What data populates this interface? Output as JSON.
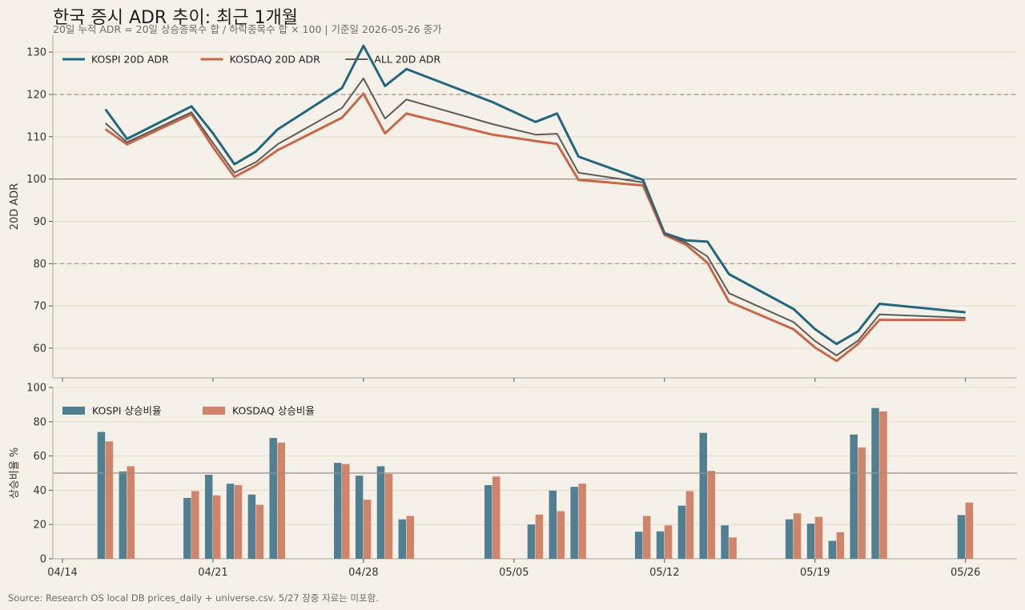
{
  "title": "한국 증시 ADR 추이: 최근 1개월",
  "subtitle": "20일 누적 ADR = 20일 상승종목수 합 / 하락종목수 합 × 100 | 기준일 2026-05-26 종가",
  "source": "Source: Research OS local DB prices_daily + universe.csv. 5/27 장중 자료는 미포함.",
  "colors": {
    "background": "#f6f1e8",
    "kospi": "#22667f",
    "kosdaq": "#c8684a",
    "all": "#5e5a57",
    "kospi_bar": "#4f7f90",
    "kosdaq_bar": "#d0846a"
  },
  "chart_data": [
    {
      "type": "line",
      "ylabel": "20D ADR",
      "ylim": [
        53,
        134
      ],
      "yticks": [
        60,
        70,
        80,
        90,
        100,
        110,
        120,
        130
      ],
      "xticks": [
        "04/14",
        "04/21",
        "04/28",
        "05/05",
        "05/12",
        "05/19",
        "05/26"
      ],
      "reference_lines": [
        120,
        100,
        80
      ],
      "legend_position": "top-left",
      "grid": true,
      "x": [
        "2026-04-16",
        "2026-04-17",
        "2026-04-20",
        "2026-04-21",
        "2026-04-22",
        "2026-04-23",
        "2026-04-24",
        "2026-04-27",
        "2026-04-28",
        "2026-04-29",
        "2026-04-30",
        "2026-05-04",
        "2026-05-06",
        "2026-05-07",
        "2026-05-08",
        "2026-05-11",
        "2026-05-12",
        "2026-05-13",
        "2026-05-14",
        "2026-05-15",
        "2026-05-18",
        "2026-05-19",
        "2026-05-20",
        "2026-05-21",
        "2026-05-22",
        "2026-05-26"
      ],
      "series": [
        {
          "name": "KOSPI 20D ADR",
          "color_key": "kospi",
          "values": [
            116.5,
            109.5,
            117.2,
            110.8,
            103.5,
            106.5,
            111.7,
            121.5,
            131.5,
            122,
            126,
            118.2,
            113.5,
            115.5,
            105.3,
            99.8,
            87.2,
            85.5,
            85.2,
            77.5,
            69.3,
            64.5,
            61,
            64,
            70.5,
            68.5
          ]
        },
        {
          "name": "KOSDAQ 20D ADR",
          "color_key": "kosdaq",
          "values": [
            111.8,
            108.2,
            115.3,
            107.5,
            100.5,
            103.2,
            106.8,
            114.5,
            120.2,
            110.8,
            115.5,
            110.5,
            109,
            108.3,
            99.8,
            98.5,
            86.8,
            84.5,
            80.2,
            71,
            64.5,
            60.2,
            57,
            61,
            66.7,
            66.7
          ]
        },
        {
          "name": "ALL 20D ADR",
          "color_key": "all",
          "values": [
            113.2,
            108.7,
            115.8,
            108.5,
            101.5,
            104,
            108.2,
            116.8,
            123.8,
            114.3,
            118.8,
            113,
            110.5,
            110.7,
            101.5,
            99.2,
            87,
            85,
            81.7,
            73,
            66.2,
            61.7,
            58.3,
            61.8,
            68,
            67.2
          ]
        }
      ]
    },
    {
      "type": "bar",
      "ylabel": "상승비율 %",
      "ylim": [
        0,
        100
      ],
      "yticks": [
        0,
        20,
        40,
        60,
        80,
        100
      ],
      "reference_lines": [
        50
      ],
      "legend_position": "top-left",
      "grid": true,
      "categories": [
        "2026-04-16",
        "2026-04-17",
        "2026-04-20",
        "2026-04-21",
        "2026-04-22",
        "2026-04-23",
        "2026-04-24",
        "2026-04-27",
        "2026-04-28",
        "2026-04-29",
        "2026-04-30",
        "2026-05-04",
        "2026-05-05",
        "2026-05-06",
        "2026-05-07",
        "2026-05-08",
        "2026-05-11",
        "2026-05-12",
        "2026-05-13",
        "2026-05-14",
        "2026-05-15",
        "2026-05-18",
        "2026-05-19",
        "2026-05-20",
        "2026-05-21",
        "2026-05-22",
        "2026-05-26"
      ],
      "series": [
        {
          "name": "KOSPI 상승비율",
          "color_key": "kospi_bar",
          "values": [
            74,
            51,
            35.5,
            49,
            43.8,
            37.5,
            70.5,
            56,
            48.5,
            54,
            23,
            43,
            null,
            20,
            39.8,
            42,
            15.8,
            16,
            31,
            73.5,
            19.5,
            23,
            20.5,
            10.5,
            72.5,
            88,
            25.5
          ]
        },
        {
          "name": "KOSDAQ 상승비율",
          "color_key": "kosdaq_bar",
          "values": [
            68.5,
            54,
            39.5,
            37,
            43,
            31.5,
            67.8,
            55.3,
            34.5,
            49.5,
            25,
            48,
            null,
            25.8,
            27.8,
            43.8,
            25,
            19.5,
            39.5,
            51.3,
            12.5,
            26.5,
            24.5,
            15.5,
            65,
            86,
            32.8
          ]
        }
      ]
    }
  ]
}
